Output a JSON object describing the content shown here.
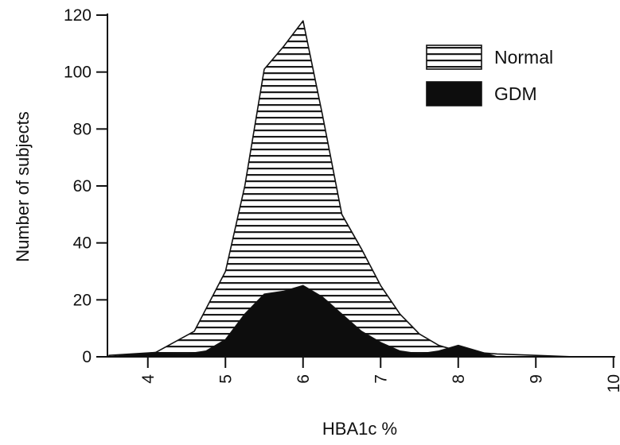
{
  "chart_data": {
    "type": "area",
    "xlabel": "HBA1c %",
    "ylabel": "Number of subjects",
    "xlim": [
      3.5,
      10
    ],
    "ylim": [
      0,
      120
    ],
    "x_ticks": [
      "4",
      "5",
      "6",
      "7",
      "8",
      "9",
      "10"
    ],
    "y_ticks": [
      "0",
      "20",
      "40",
      "60",
      "80",
      "100",
      "120"
    ],
    "legend_position": "top-right",
    "grid": false,
    "series": [
      {
        "name": "Normal",
        "fill": "horizontal-stripes",
        "color": "#1a1a1a",
        "x": [
          3.5,
          4.1,
          4.6,
          5.0,
          5.25,
          5.5,
          5.75,
          6.0,
          6.25,
          6.5,
          6.75,
          7.0,
          7.25,
          7.5,
          7.75,
          8.0,
          8.5,
          9.0,
          9.5
        ],
        "y": [
          0.5,
          1.5,
          9,
          30,
          60,
          101,
          109,
          118,
          85,
          50,
          38,
          25,
          15,
          8,
          4,
          2,
          1,
          0.5,
          0
        ]
      },
      {
        "name": "GDM",
        "fill": "solid",
        "color": "#0d0d0d",
        "x": [
          3.5,
          4.1,
          4.5,
          4.75,
          5.0,
          5.25,
          5.5,
          5.75,
          6.0,
          6.25,
          6.5,
          6.75,
          7.0,
          7.25,
          7.5,
          7.75,
          8.0,
          8.25,
          8.5
        ],
        "y": [
          0,
          1.5,
          1,
          2,
          6,
          15,
          22,
          23,
          25,
          21,
          15,
          9,
          5,
          2,
          1,
          2,
          4,
          2,
          0
        ]
      }
    ]
  }
}
